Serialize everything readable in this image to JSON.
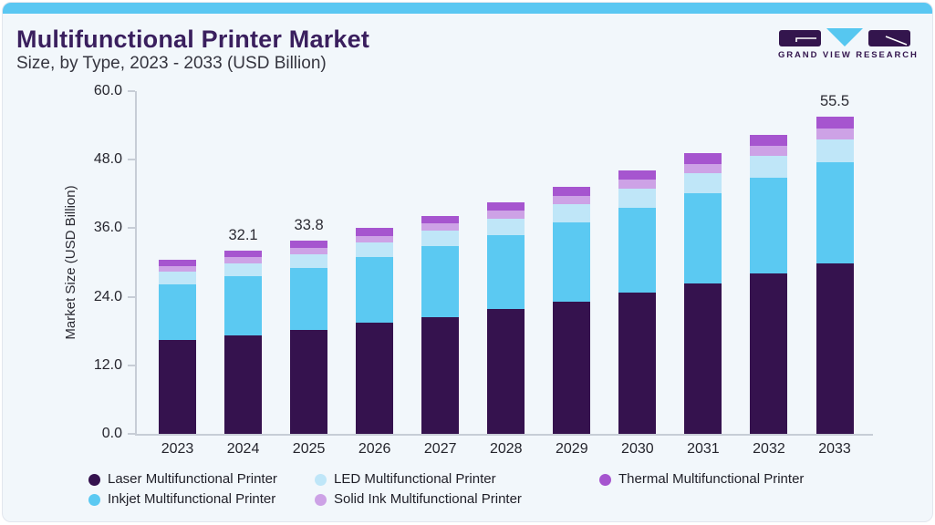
{
  "header": {
    "title": "Multifunctional Printer Market",
    "subtitle": "Size, by Type, 2023 - 2033 (USD Billion)"
  },
  "logo": {
    "text": "GRAND VIEW RESEARCH"
  },
  "colors": {
    "card_background": "#f2f7fb",
    "top_strip": "#5ac7f2",
    "title_text": "#3a1f5e",
    "axis_line": "#c7cdd6",
    "logo_purple": "#33154d",
    "logo_cyan": "#56c7f0"
  },
  "chart_data": {
    "type": "bar",
    "stacked": true,
    "title": "Multifunctional Printer Market Size, by Type, 2023 - 2033 (USD Billion)",
    "xlabel": "",
    "ylabel": "Market Size (USD Billion)",
    "ylim": [
      0,
      60
    ],
    "yticks": [
      0,
      12,
      24,
      36,
      48,
      60
    ],
    "ytick_labels": [
      "0.0",
      "12.0",
      "24.0",
      "36.0",
      "48.0",
      "60.0"
    ],
    "grid": false,
    "legend_position": "bottom",
    "categories": [
      "2023",
      "2024",
      "2025",
      "2026",
      "2027",
      "2028",
      "2029",
      "2030",
      "2031",
      "2032",
      "2033"
    ],
    "series": [
      {
        "name": "Laser Multifunctional Printer",
        "color": "#35124e",
        "values": [
          16.4,
          17.3,
          18.2,
          19.4,
          20.5,
          21.8,
          23.2,
          24.8,
          26.4,
          28.1,
          29.8
        ]
      },
      {
        "name": "Inkjet Multifunctional Printer",
        "color": "#5bc9f2",
        "values": [
          9.8,
          10.3,
          10.8,
          11.5,
          12.3,
          13.0,
          13.9,
          14.8,
          15.7,
          16.8,
          17.8
        ]
      },
      {
        "name": "LED Multifunctional Printer",
        "color": "#bfe6f8",
        "values": [
          2.2,
          2.3,
          2.4,
          2.6,
          2.8,
          2.9,
          3.1,
          3.3,
          3.5,
          3.7,
          4.0
        ]
      },
      {
        "name": "Solid Ink Multifunctional Printer",
        "color": "#cda2e6",
        "values": [
          1.0,
          1.1,
          1.2,
          1.2,
          1.3,
          1.4,
          1.5,
          1.6,
          1.7,
          1.8,
          1.9
        ]
      },
      {
        "name": "Thermal Multifunctional Printer",
        "color": "#a655cf",
        "values": [
          1.1,
          1.1,
          1.2,
          1.3,
          1.3,
          1.5,
          1.5,
          1.6,
          1.8,
          1.9,
          2.0
        ]
      }
    ],
    "totals": [
      30.5,
      32.1,
      33.8,
      36.0,
      38.2,
      40.6,
      43.2,
      46.1,
      49.1,
      52.3,
      55.5
    ],
    "annotations": [
      {
        "category": "2024",
        "text": "32.1"
      },
      {
        "category": "2025",
        "text": "33.8"
      },
      {
        "category": "2033",
        "text": "55.5"
      }
    ]
  },
  "legend": {
    "items": [
      {
        "series_index": 0
      },
      {
        "series_index": 2
      },
      {
        "series_index": 4
      },
      {
        "series_index": 1
      },
      {
        "series_index": 3
      }
    ]
  }
}
